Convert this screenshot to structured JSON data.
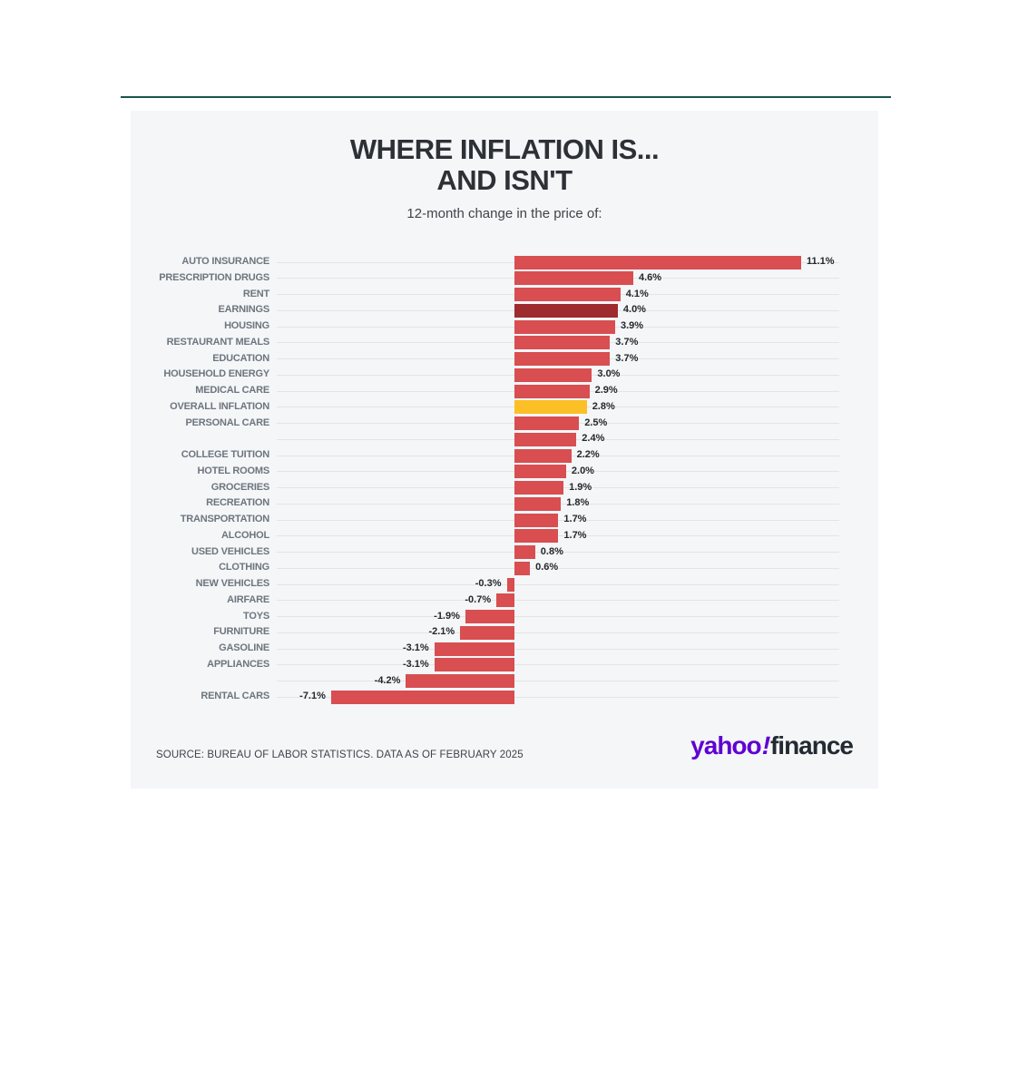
{
  "page": {
    "top_rule_color": "#19544c",
    "card_background": "#f4f6f8"
  },
  "header": {
    "title_line1": "WHERE INFLATION IS...",
    "title_line2": "AND ISN'T",
    "subtitle": "12-month change in the price of:"
  },
  "colors": {
    "bar_red": "#d84e51",
    "bar_dark_red": "#9e2b2d",
    "bar_gold": "#fcc026",
    "gridline": "#e2e5e8",
    "category_label": "#6d757e",
    "value_label": "#25282c",
    "logo_purple": "#5f01d2",
    "logo_dark": "#232a31"
  },
  "chart_data": {
    "type": "bar",
    "orientation": "horizontal",
    "unit": "%",
    "xlim": [
      -9.2,
      12.6
    ],
    "grid": true,
    "legend": "none",
    "bars": [
      {
        "label": "AUTO INSURANCE",
        "value": 11.1,
        "display": "11.1%",
        "emphasis": "normal"
      },
      {
        "label": "PRESCRIPTION DRUGS",
        "value": 4.6,
        "display": "4.6%",
        "emphasis": "normal"
      },
      {
        "label": "RENT",
        "value": 4.1,
        "display": "4.1%",
        "emphasis": "normal"
      },
      {
        "label": "EARNINGS",
        "value": 4.0,
        "display": "4.0%",
        "emphasis": "dark-red"
      },
      {
        "label": "HOUSING",
        "value": 3.9,
        "display": "3.9%",
        "emphasis": "normal"
      },
      {
        "label": "RESTAURANT MEALS",
        "value": 3.7,
        "display": "3.7%",
        "emphasis": "normal"
      },
      {
        "label": "EDUCATION",
        "value": 3.7,
        "display": "3.7%",
        "emphasis": "normal"
      },
      {
        "label": "HOUSEHOLD ENERGY",
        "value": 3.0,
        "display": "3.0%",
        "emphasis": "normal"
      },
      {
        "label": "MEDICAL CARE",
        "value": 2.9,
        "display": "2.9%",
        "emphasis": "normal"
      },
      {
        "label": "OVERALL INFLATION",
        "value": 2.8,
        "display": "2.8%",
        "emphasis": "gold"
      },
      {
        "label": "PERSONAL CARE",
        "value": 2.5,
        "display": "2.5%",
        "emphasis": "normal"
      },
      {
        "label": "",
        "value": 2.4,
        "display": "2.4%",
        "emphasis": "normal"
      },
      {
        "label": "COLLEGE TUITION",
        "value": 2.2,
        "display": "2.2%",
        "emphasis": "normal"
      },
      {
        "label": "HOTEL ROOMS",
        "value": 2.0,
        "display": "2.0%",
        "emphasis": "normal"
      },
      {
        "label": "GROCERIES",
        "value": 1.9,
        "display": "1.9%",
        "emphasis": "normal"
      },
      {
        "label": "RECREATION",
        "value": 1.8,
        "display": "1.8%",
        "emphasis": "normal"
      },
      {
        "label": "TRANSPORTATION",
        "value": 1.7,
        "display": "1.7%",
        "emphasis": "normal"
      },
      {
        "label": "ALCOHOL",
        "value": 1.7,
        "display": "1.7%",
        "emphasis": "normal"
      },
      {
        "label": "USED VEHICLES",
        "value": 0.8,
        "display": "0.8%",
        "emphasis": "normal"
      },
      {
        "label": "CLOTHING",
        "value": 0.6,
        "display": "0.6%",
        "emphasis": "normal"
      },
      {
        "label": "NEW VEHICLES",
        "value": -0.3,
        "display": "-0.3%",
        "emphasis": "normal"
      },
      {
        "label": "AIRFARE",
        "value": -0.7,
        "display": "-0.7%",
        "emphasis": "normal"
      },
      {
        "label": "TOYS",
        "value": -1.9,
        "display": "-1.9%",
        "emphasis": "normal"
      },
      {
        "label": "FURNITURE",
        "value": -2.1,
        "display": "-2.1%",
        "emphasis": "normal"
      },
      {
        "label": "GASOLINE",
        "value": -3.1,
        "display": "-3.1%",
        "emphasis": "normal"
      },
      {
        "label": "APPLIANCES",
        "value": -3.1,
        "display": "-3.1%",
        "emphasis": "normal"
      },
      {
        "label": "",
        "value": -4.2,
        "display": "-4.2%",
        "emphasis": "normal"
      },
      {
        "label": "RENTAL CARS",
        "value": -7.1,
        "display": "-7.1%",
        "emphasis": "normal"
      }
    ]
  },
  "footer": {
    "source": "SOURCE: BUREAU OF LABOR STATISTICS. DATA AS OF FEBRUARY 2025",
    "logo": {
      "yahoo": "yahoo",
      "bang": "!",
      "finance": "finance"
    }
  }
}
